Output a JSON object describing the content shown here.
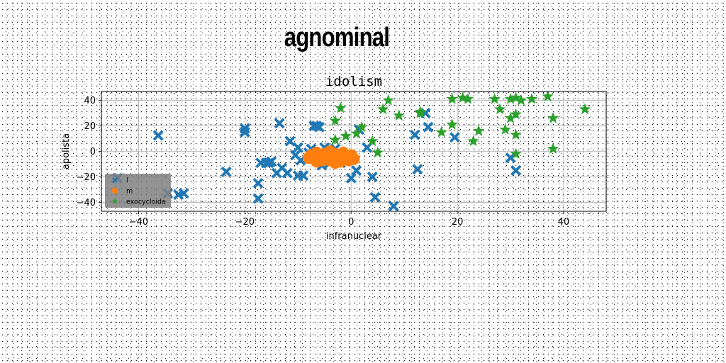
{
  "suptitle": "agnominal",
  "chart_data": {
    "type": "scatter",
    "title": "idolism",
    "xlabel": "infranuclear",
    "ylabel": "apolista",
    "xlim": [
      -47,
      48
    ],
    "ylim": [
      -47,
      47
    ],
    "xticks": [
      -40,
      -20,
      0,
      20,
      40
    ],
    "xtick_labels": [
      "−40",
      "−20",
      "0",
      "20",
      "40"
    ],
    "yticks": [
      -40,
      -20,
      0,
      20,
      40
    ],
    "ytick_labels": [
      "−40",
      "−20",
      "0",
      "20",
      "40"
    ],
    "grid": true,
    "legend_position": "lower-left",
    "series": [
      {
        "name": "l",
        "marker": "x-filled",
        "color": "#1f77b4",
        "points": [
          [
            -36.3,
            12.5
          ],
          [
            -44,
            -21
          ],
          [
            -34.5,
            -33
          ],
          [
            -32.5,
            -34
          ],
          [
            -31.5,
            -33
          ],
          [
            -23.5,
            -16
          ],
          [
            -20,
            15
          ],
          [
            -20,
            18
          ],
          [
            -17.5,
            -25
          ],
          [
            -17.5,
            -37
          ],
          [
            -17,
            -9
          ],
          [
            -16,
            -9
          ],
          [
            -15.5,
            -9
          ],
          [
            -15,
            -8
          ],
          [
            -14,
            -17
          ],
          [
            -13.5,
            22
          ],
          [
            -13,
            -13
          ],
          [
            -12,
            -17
          ],
          [
            -11.5,
            8
          ],
          [
            -10.5,
            -3
          ],
          [
            -10,
            -19
          ],
          [
            -10,
            3
          ],
          [
            -9.5,
            -7
          ],
          [
            -9,
            -19
          ],
          [
            -8,
            -1
          ],
          [
            -7.5,
            2
          ],
          [
            -7,
            20
          ],
          [
            -6.5,
            20
          ],
          [
            -6,
            19
          ],
          [
            -5.5,
            -11
          ],
          [
            -5,
            3
          ],
          [
            -4,
            -9
          ],
          [
            -3,
            2
          ],
          [
            -2.5,
            -5
          ],
          [
            -2,
            -9
          ],
          [
            -1.5,
            -6
          ],
          [
            0,
            -21
          ],
          [
            1,
            -15
          ],
          [
            1.5,
            17
          ],
          [
            3,
            3
          ],
          [
            4,
            -20
          ],
          [
            4.5,
            -36
          ],
          [
            8,
            -43
          ],
          [
            12,
            13
          ],
          [
            12.5,
            -14
          ],
          [
            14,
            30
          ],
          [
            14.5,
            19
          ],
          [
            19.5,
            11
          ],
          [
            30,
            -5
          ],
          [
            31,
            -15
          ]
        ]
      },
      {
        "name": "m",
        "marker": "circle",
        "color": "#ff7f0e",
        "points": [
          [
            -7.5,
            -3
          ],
          [
            -7,
            -6
          ],
          [
            -6.5,
            -1
          ],
          [
            -6,
            -4
          ],
          [
            -5.5,
            -7
          ],
          [
            -5,
            -2
          ],
          [
            -5,
            -5
          ],
          [
            -4.5,
            -3
          ],
          [
            -4,
            -7
          ],
          [
            -4,
            0
          ],
          [
            -3.5,
            -5
          ],
          [
            -3,
            -2
          ],
          [
            -2.5,
            -6
          ],
          [
            -2,
            -3
          ],
          [
            -2,
            -8
          ],
          [
            -1.5,
            -1
          ],
          [
            -1,
            -5
          ],
          [
            -0.5,
            -7
          ],
          [
            0,
            -3
          ],
          [
            0.5,
            -6
          ],
          [
            -6.5,
            -8
          ],
          [
            -8,
            -5
          ],
          [
            -3,
            -9
          ]
        ]
      },
      {
        "name": "exocycloida",
        "marker": "star",
        "color": "#2ca02c",
        "points": [
          [
            -3,
            9
          ],
          [
            -3,
            24
          ],
          [
            -2,
            34
          ],
          [
            -1,
            12
          ],
          [
            1,
            14
          ],
          [
            2,
            19
          ],
          [
            4,
            8
          ],
          [
            5,
            -1
          ],
          [
            6,
            33
          ],
          [
            7,
            40
          ],
          [
            9,
            28
          ],
          [
            13,
            31
          ],
          [
            13,
            30
          ],
          [
            17,
            15
          ],
          [
            19,
            21
          ],
          [
            19,
            41
          ],
          [
            21,
            42
          ],
          [
            22,
            41
          ],
          [
            23,
            8
          ],
          [
            24,
            16
          ],
          [
            27,
            41
          ],
          [
            28,
            33
          ],
          [
            29,
            17
          ],
          [
            30,
            26
          ],
          [
            30,
            41
          ],
          [
            31,
            29
          ],
          [
            31,
            13
          ],
          [
            31,
            -2
          ],
          [
            31,
            42
          ],
          [
            32,
            40
          ],
          [
            34,
            41
          ],
          [
            37,
            43
          ],
          [
            38,
            26
          ],
          [
            38,
            2
          ],
          [
            44,
            33
          ]
        ]
      }
    ]
  },
  "colors": {
    "background": "#ffffff",
    "axis": "#000000",
    "grid": "#b0b0b0",
    "legend_bg": "#808080"
  }
}
